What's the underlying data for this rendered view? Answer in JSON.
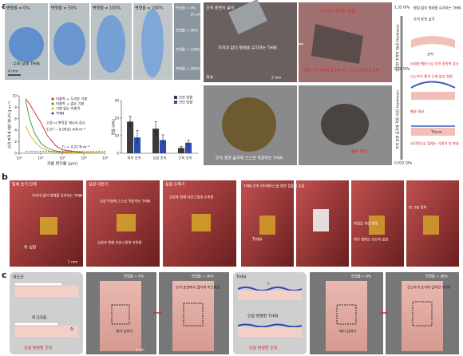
{
  "panel_a": {
    "label": "a",
    "film_labels": [
      "변형률 = 0%",
      "변형률 = 50%",
      "변형률 = 100%",
      "변형률 = 200%"
    ],
    "hydrated": "수화 상태 THIN",
    "scale_film": "4 mm",
    "strain_list": [
      "변형률 = 0%",
      "변형률 = 50%",
      "변형률 = 100%",
      "변형률 = 200%"
    ],
    "scale_micro": "10 μm",
    "photo_texts": {
      "curvature": "조직 표면의 굴곡",
      "freestanding": "지지대 없이 형태를 유지하는 THIN",
      "skin": "피부",
      "scale": "2 mm",
      "tearing": "나노막이 찢겨는 현상",
      "adapt_fine": "미세한 조직 표면의 굴곡에 따라 스스로 적응하는 접착",
      "adapt": "조직 표면 굴곡에 스스로 적응하는 THIN",
      "swelling": "팽윤 확산"
    },
    "side": {
      "top_modulus": "1.35 GPa",
      "mid_modulus": "0.34 GPa",
      "low_modulus": "0.025 GPa",
      "title": "찢김 없이 형태를 유지하는 THIN",
      "axis_top": "단단한 초박막 (높은 Hardness)",
      "axis_bottom": "조직 표면 굴곡에 적응 (낮은 Hardness)",
      "tissue_curve": "조직 표면 굴곡",
      "tissue": "조직",
      "asym": "비대칭 팽윤으로 인한 접착면 감소",
      "tear": "나노막이 찢겨 두께 분포 변화",
      "swell": "팽윤 확산",
      "tissue_en": "Tissue",
      "hex": "육각형으로 팔레는 기계적 성 변화"
    }
  },
  "chart_data": [
    {
      "type": "line",
      "y_label": "단위 면적에 대한 에너지 (J m⁻²)",
      "x_label": "곡률 반지름 (μm)",
      "log_x": true,
      "xlim": [
        1,
        10000
      ],
      "xticks": [
        {
          "value": 1,
          "label": "10⁰"
        },
        {
          "value": 10,
          "label": "10¹"
        },
        {
          "value": 100,
          "label": "10²"
        },
        {
          "value": 1000,
          "label": "10³"
        },
        {
          "value": 10000,
          "label": "10⁴"
        }
      ],
      "ylim": [
        0,
        10
      ],
      "yticks": [
        0,
        2,
        4,
        6,
        8,
        10
      ],
      "x": [
        2,
        3,
        5,
        10,
        20,
        50,
        100,
        1000,
        10000
      ],
      "series": [
        {
          "name": "미충족 + 두꺼운 기판",
          "color": "#d62020",
          "values": [
            9.5,
            8.6,
            7.2,
            5.4,
            3.1,
            1.3,
            0.6,
            0.1,
            0.02
          ]
        },
        {
          "name": "미충족 + 얇은 기판",
          "color": "#2a9a2a",
          "values": [
            9.2,
            6.1,
            3.6,
            1.8,
            0.9,
            0.4,
            0.2,
            0.05,
            0.02
          ]
        },
        {
          "name": "기판 없는 미충족",
          "color": "#e0b000",
          "values": [
            4.8,
            3.3,
            2.1,
            1.0,
            0.5,
            0.2,
            0.1,
            0.03,
            0.01
          ]
        },
        {
          "name": "THIN",
          "color": "#2040d0",
          "dashed": true,
          "values": [
            0.3,
            0.3,
            0.3,
            0.3,
            0.3,
            0.3,
            0.3,
            0.3,
            0.3
          ]
        }
      ],
      "annotations": [
        "수화 시 면적을 에너지 감소",
        "5.57 − 0.0032 mN m⁻²",
        "Γ₀ = 4.22 N m⁻²"
      ]
    },
    {
      "type": "bar",
      "y_label": "영률 (kPa)",
      "categories": [
        "피부 조직",
        "심장 조직",
        "근육 조직"
      ],
      "ylim": [
        0,
        30
      ],
      "yticks": [
        0,
        10,
        20,
        30
      ],
      "series": [
        {
          "name": "인장 방향",
          "color": "#3a3a3a",
          "values": [
            18,
            14,
            3
          ],
          "errors": [
            3,
            4,
            1
          ]
        },
        {
          "name": "전단 방향",
          "color": "#2f4fb0",
          "values": [
            9,
            7.5,
            6
          ],
          "errors": [
            4,
            3,
            1.5
          ]
        }
      ]
    }
  ],
  "panel_b": {
    "label": "b",
    "texts": [
      "입체 초기 단계",
      "지지대 없이 형태를 유지하는 THIN",
      "쥐 심장",
      "심장 이완기",
      "심장 박동에 스스로 적응하는 THIN",
      "심장 수축기",
      "심장과 함께 자연스럽게 수축함",
      "심장과 함께 자연스럽게 이완함",
      "THIN 조직 인터페이스를 향한 물줄기 흐름",
      "THIN",
      "마찰을 위한 변형",
      "외부 힘에도 단단히 붙음",
      "면 고정 접착"
    ],
    "scale": "1 mm"
  },
  "panel_c": {
    "label": "c",
    "control": "대조군",
    "slip": "미끄러짐",
    "stretched_tissue": "인장 변형된 조직",
    "strain0": "변형률 = 0%",
    "strain36": "변형률 = 36%",
    "pig": "돼지 심외막",
    "slip_off": "조직 표면에서 떨어져 미끄러짐",
    "thin": "THIN",
    "stretched_thin": "인장 변형된 THIN",
    "firm": "견고하게 조직에 밀착된 THIN",
    "scale": "1 cm",
    "dl": "Δl",
    "l0": "l₀"
  }
}
